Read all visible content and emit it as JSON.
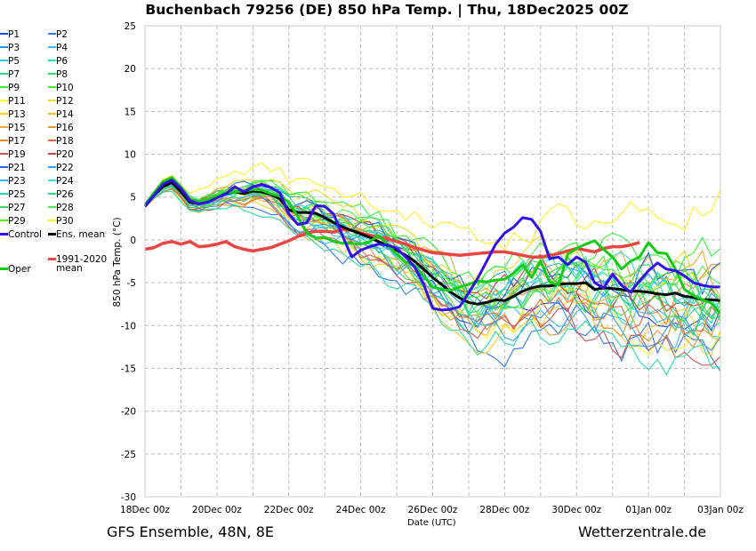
{
  "chart_data": {
    "type": "line",
    "title": "Buchenbach 79256 (DE)  850 hPa Temp. | Thu, 18Dec2025 00Z",
    "xlabel": "Date (UTC)",
    "ylabel": "850 hPa Temp. (°C)",
    "ylim": [
      -30,
      25
    ],
    "yticks": [
      25,
      20,
      15,
      10,
      5,
      0,
      -5,
      -10,
      -15,
      -20,
      -25,
      -30
    ],
    "xticks": [
      "18Dec 00z",
      "20Dec 00z",
      "22Dec 00z",
      "24Dec 00z",
      "26Dec 00z",
      "28Dec 00z",
      "30Dec 00z",
      "01Jan 00z",
      "03Jan 00z"
    ],
    "x_step_hours": 6,
    "x_range_hours": [
      0,
      384
    ],
    "grid": true,
    "legend_position": "left-outside",
    "series": [
      {
        "name": "Control",
        "color": "#3311ee",
        "width": "thick",
        "values": [
          4.0,
          5.2,
          6.5,
          7.0,
          6.0,
          4.6,
          4.2,
          4.4,
          4.9,
          5.4,
          6.2,
          5.6,
          6.2,
          6.5,
          6.1,
          5.5,
          3.0,
          1.8,
          2.0,
          4.0,
          3.9,
          3.0,
          0.4,
          -2.0,
          -1.2,
          -0.8,
          -0.5,
          -0.6,
          -1.0,
          -2.0,
          -3.2,
          -5.2,
          -8.0,
          -8.2,
          -8.1,
          -7.8,
          -6.2,
          -4.5,
          -2.5,
          -0.5,
          0.8,
          1.5,
          2.6,
          2.4,
          1.0,
          -2.2,
          -2.0,
          -2.9,
          -2.0,
          -2.6,
          -5.0,
          -5.6,
          -4.0,
          -5.3,
          -6.1,
          -4.8,
          -3.6,
          -2.7,
          -3.4,
          -3.6,
          -4.2,
          -5.0,
          -5.3,
          -5.5,
          -5.5
        ]
      },
      {
        "name": "Ens. mean",
        "color": "#000000",
        "width": "thick",
        "values": [
          3.9,
          5.2,
          6.2,
          6.7,
          5.6,
          4.4,
          4.2,
          4.5,
          5.0,
          5.4,
          5.6,
          5.4,
          5.7,
          5.6,
          5.3,
          4.8,
          3.5,
          3.2,
          3.2,
          3.1,
          2.6,
          2.0,
          1.5,
          1.1,
          0.7,
          0.3,
          -0.2,
          -0.7,
          -1.2,
          -1.8,
          -2.5,
          -3.4,
          -4.4,
          -5.2,
          -6.1,
          -6.8,
          -7.3,
          -7.5,
          -7.3,
          -7.0,
          -7.1,
          -6.6,
          -6.0,
          -5.6,
          -5.4,
          -5.4,
          -5.2,
          -5.1,
          -5.1,
          -5.0,
          -5.8,
          -5.6,
          -5.7,
          -5.8,
          -6.0,
          -6.0,
          -6.1,
          -6.3,
          -6.4,
          -6.2,
          -6.6,
          -6.7,
          -7.0,
          -7.0,
          -7.1
        ]
      },
      {
        "name": "Oper",
        "color": "#11cc11",
        "width": "thick",
        "values": [
          4.1,
          5.5,
          6.8,
          7.3,
          6.2,
          4.7,
          4.5,
          4.7,
          5.1,
          5.5,
          5.6,
          5.7,
          5.9,
          5.8,
          5.4,
          5.1,
          4.4,
          2.7,
          0.8,
          0.2,
          0.3,
          -0.2,
          -0.4,
          -0.4,
          -0.5,
          -0.2,
          0.5,
          -0.6,
          -1.7,
          -2.6,
          -3.0,
          -4.2,
          -5.5,
          -5.8,
          -5.9,
          -5.5,
          -5.2,
          -4.8,
          -4.9,
          -4.7,
          -4.6,
          -3.9,
          -2.9,
          -4.4,
          -2.5,
          -4.9,
          -5.3,
          -1.7,
          -1.0,
          -0.5,
          -0.1,
          -1.1,
          -2.0,
          -3.4,
          -2.5,
          -2.0,
          -0.3,
          -1.5,
          -1.6,
          -3.4,
          -5.8,
          -6.5,
          -7.0,
          -7.4,
          -8.6
        ]
      },
      {
        "name": "1991-2020 mean",
        "color": "#ee4444",
        "width": "thick",
        "values": [
          -1.1,
          -0.9,
          -0.4,
          -0.2,
          -0.5,
          -0.2,
          -0.8,
          -0.7,
          -0.5,
          -0.2,
          -0.8,
          -1.1,
          -1.3,
          -1.1,
          -0.9,
          -0.5,
          -0.1,
          0.4,
          0.8,
          1.0,
          1.0,
          0.9,
          1.2,
          1.1,
          0.8,
          0.5,
          0.3,
          0.1,
          -0.2,
          -0.5,
          -0.9,
          -1.2,
          -1.5,
          -1.6,
          -1.7,
          -1.8,
          -1.7,
          -1.6,
          -1.5,
          -1.4,
          -1.4,
          -1.6,
          -1.8,
          -2.0,
          -2.0,
          -1.8,
          -1.6,
          -1.3,
          -1.0,
          -1.2,
          -1.4,
          -1.0,
          -0.8,
          -0.8,
          -0.6,
          -0.3,
          null,
          null,
          null,
          null,
          null,
          null,
          null,
          null,
          null
        ]
      }
    ],
    "members": {
      "names": [
        "P1",
        "P2",
        "P3",
        "P4",
        "P5",
        "P6",
        "P7",
        "P8",
        "P9",
        "P10",
        "P11",
        "P12",
        "P13",
        "P14",
        "P15",
        "P16",
        "P17",
        "P18",
        "P19",
        "P20",
        "P21",
        "P22",
        "P23",
        "P24",
        "P25",
        "P26",
        "P27",
        "P28",
        "P29",
        "P30"
      ],
      "colors": [
        "#2244ee",
        "#3377ee",
        "#2299ee",
        "#33bbee",
        "#22ccdd",
        "#22ddbb",
        "#22dd88",
        "#22dd66",
        "#33ee33",
        "#44ee22",
        "#ffff22",
        "#eedd22",
        "#ffcc22",
        "#eebb33",
        "#eeaa33",
        "#dd9933",
        "#ee8833",
        "#dd6644",
        "#cc5555",
        "#bb4444",
        "#2266ee",
        "#3399ee",
        "#33bbee",
        "#33ddee",
        "#22ddaa",
        "#22dd88",
        "#33dd55",
        "#44ee44",
        "#55ee22",
        "#ffee22"
      ],
      "end_values": [
        -9.4,
        -13.8,
        -6.2,
        -10.1,
        -7.8,
        -9.0,
        -8.3,
        -5.1,
        -2.8,
        -6.7,
        -10.5,
        -3.4,
        -12.0,
        -8.6,
        -4.4,
        -11.2,
        -7.3,
        -9.8,
        -12.9,
        -6.0,
        -4.9,
        -10.8,
        -8.1,
        -5.6,
        -15.2,
        -7.0,
        -9.3,
        -3.8,
        -6.5,
        3.2
      ]
    },
    "legend": {
      "items": [
        "P1",
        "P2",
        "P3",
        "P4",
        "P5",
        "P6",
        "P7",
        "P8",
        "P9",
        "P10",
        "P11",
        "P12",
        "P13",
        "P14",
        "P15",
        "P16",
        "P17",
        "P18",
        "P19",
        "P20",
        "P21",
        "P22",
        "P23",
        "P24",
        "P25",
        "P26",
        "P27",
        "P28",
        "P29",
        "P30",
        "Control",
        "Ens. mean",
        "Oper",
        "1991-2020\nmean"
      ]
    }
  },
  "footer": {
    "left": "GFS Ensemble, 48N, 8E",
    "right": "Wetterzentrale.de"
  }
}
